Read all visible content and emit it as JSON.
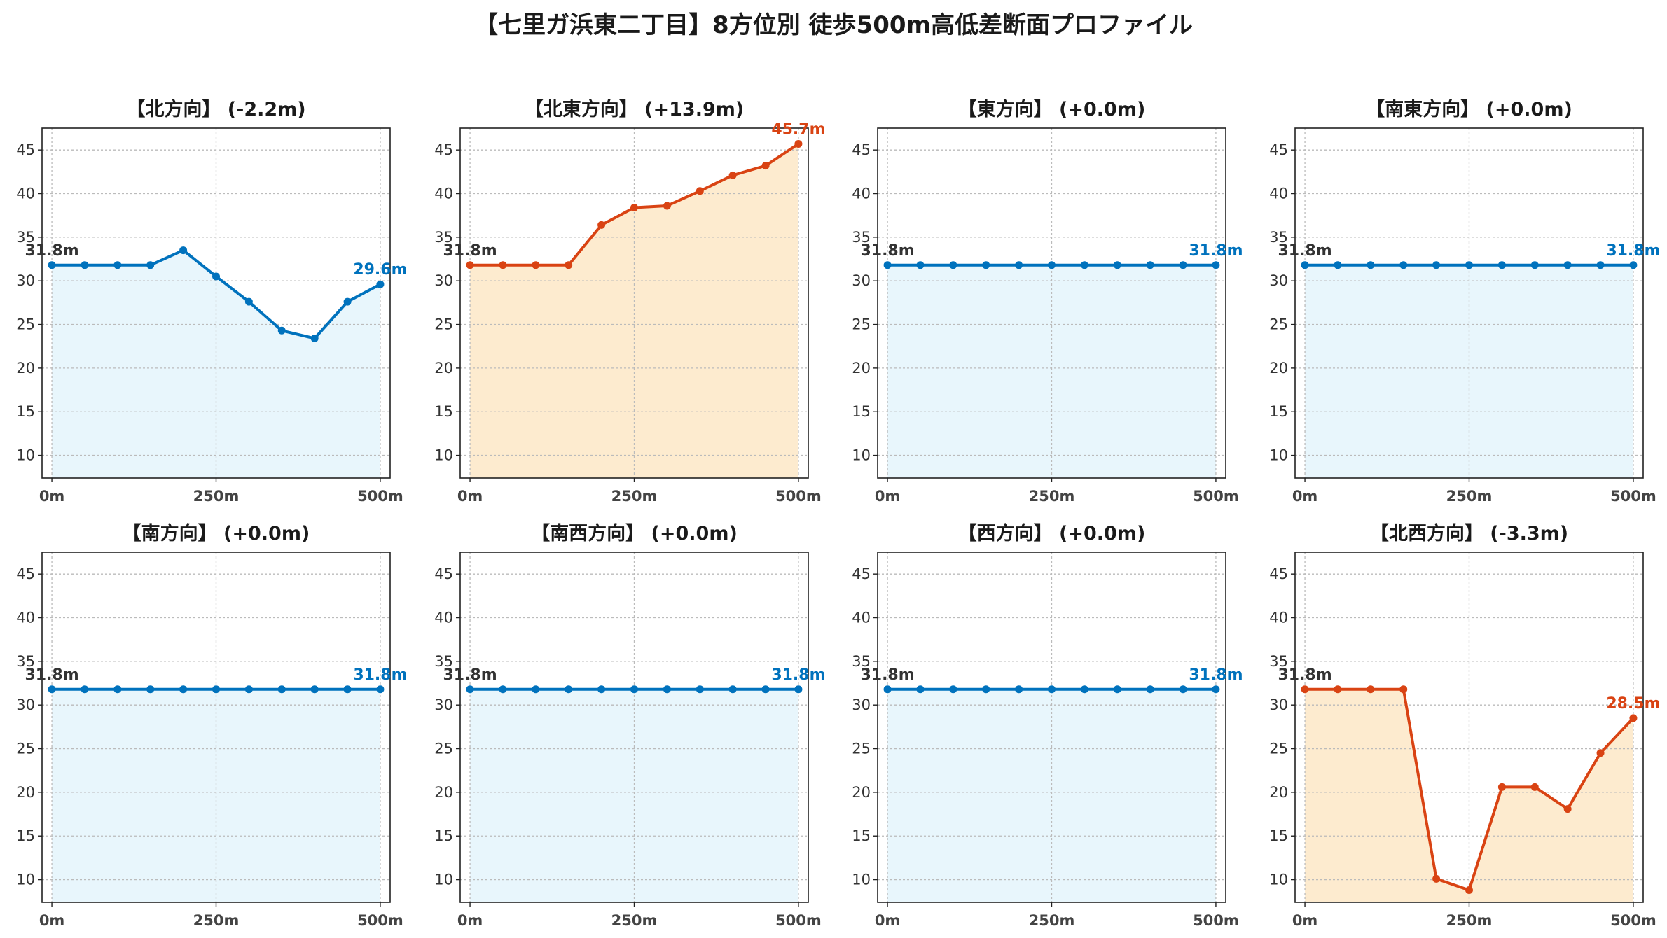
{
  "figure_title": "【七里ガ浜東二丁目】8方位別 徒歩500m高低差断面プロファイル",
  "colors": {
    "flat_line": "#0072BD",
    "flat_fill": "#E8F6FC",
    "change_line": "#D94313",
    "change_fill": "#FDEBCF",
    "start_label": "#333333"
  },
  "chart_data": [
    {
      "type": "area",
      "title": "【北方向】 (-2.2m)",
      "style": "flat",
      "x": [
        0,
        50,
        100,
        150,
        200,
        250,
        300,
        350,
        400,
        450,
        500
      ],
      "values": [
        31.8,
        31.8,
        31.8,
        31.8,
        33.5,
        30.5,
        27.6,
        24.3,
        23.4,
        27.6,
        29.6
      ],
      "start_label": "31.8m",
      "end_label": "29.6m",
      "xticks": [
        "0m",
        "250m",
        "500m"
      ],
      "yticks": [
        10,
        15,
        20,
        25,
        30,
        35,
        40,
        45
      ],
      "xlim": [
        -15,
        515
      ],
      "ylim": [
        7.4,
        47.5
      ],
      "grid": true
    },
    {
      "type": "area",
      "title": "【北東方向】 (+13.9m)",
      "style": "change",
      "x": [
        0,
        50,
        100,
        150,
        200,
        250,
        300,
        350,
        400,
        450,
        500
      ],
      "values": [
        31.8,
        31.8,
        31.8,
        31.8,
        36.4,
        38.4,
        38.6,
        40.3,
        42.1,
        43.2,
        45.7
      ],
      "start_label": "31.8m",
      "end_label": "45.7m",
      "xticks": [
        "0m",
        "250m",
        "500m"
      ],
      "yticks": [
        10,
        15,
        20,
        25,
        30,
        35,
        40,
        45
      ],
      "xlim": [
        -15,
        515
      ],
      "ylim": [
        7.4,
        47.5
      ],
      "grid": true
    },
    {
      "type": "area",
      "title": "【東方向】 (+0.0m)",
      "style": "flat",
      "x": [
        0,
        50,
        100,
        150,
        200,
        250,
        300,
        350,
        400,
        450,
        500
      ],
      "values": [
        31.8,
        31.8,
        31.8,
        31.8,
        31.8,
        31.8,
        31.8,
        31.8,
        31.8,
        31.8,
        31.8
      ],
      "start_label": "31.8m",
      "end_label": "31.8m",
      "xticks": [
        "0m",
        "250m",
        "500m"
      ],
      "yticks": [
        10,
        15,
        20,
        25,
        30,
        35,
        40,
        45
      ],
      "xlim": [
        -15,
        515
      ],
      "ylim": [
        7.4,
        47.5
      ],
      "grid": true
    },
    {
      "type": "area",
      "title": "【南東方向】 (+0.0m)",
      "style": "flat",
      "x": [
        0,
        50,
        100,
        150,
        200,
        250,
        300,
        350,
        400,
        450,
        500
      ],
      "values": [
        31.8,
        31.8,
        31.8,
        31.8,
        31.8,
        31.8,
        31.8,
        31.8,
        31.8,
        31.8,
        31.8
      ],
      "start_label": "31.8m",
      "end_label": "31.8m",
      "xticks": [
        "0m",
        "250m",
        "500m"
      ],
      "yticks": [
        10,
        15,
        20,
        25,
        30,
        35,
        40,
        45
      ],
      "xlim": [
        -15,
        515
      ],
      "ylim": [
        7.4,
        47.5
      ],
      "grid": true
    },
    {
      "type": "area",
      "title": "【南方向】 (+0.0m)",
      "style": "flat",
      "x": [
        0,
        50,
        100,
        150,
        200,
        250,
        300,
        350,
        400,
        450,
        500
      ],
      "values": [
        31.8,
        31.8,
        31.8,
        31.8,
        31.8,
        31.8,
        31.8,
        31.8,
        31.8,
        31.8,
        31.8
      ],
      "start_label": "31.8m",
      "end_label": "31.8m",
      "xticks": [
        "0m",
        "250m",
        "500m"
      ],
      "yticks": [
        10,
        15,
        20,
        25,
        30,
        35,
        40,
        45
      ],
      "xlim": [
        -15,
        515
      ],
      "ylim": [
        7.4,
        47.5
      ],
      "grid": true
    },
    {
      "type": "area",
      "title": "【南西方向】 (+0.0m)",
      "style": "flat",
      "x": [
        0,
        50,
        100,
        150,
        200,
        250,
        300,
        350,
        400,
        450,
        500
      ],
      "values": [
        31.8,
        31.8,
        31.8,
        31.8,
        31.8,
        31.8,
        31.8,
        31.8,
        31.8,
        31.8,
        31.8
      ],
      "start_label": "31.8m",
      "end_label": "31.8m",
      "xticks": [
        "0m",
        "250m",
        "500m"
      ],
      "yticks": [
        10,
        15,
        20,
        25,
        30,
        35,
        40,
        45
      ],
      "xlim": [
        -15,
        515
      ],
      "ylim": [
        7.4,
        47.5
      ],
      "grid": true
    },
    {
      "type": "area",
      "title": "【西方向】 (+0.0m)",
      "style": "flat",
      "x": [
        0,
        50,
        100,
        150,
        200,
        250,
        300,
        350,
        400,
        450,
        500
      ],
      "values": [
        31.8,
        31.8,
        31.8,
        31.8,
        31.8,
        31.8,
        31.8,
        31.8,
        31.8,
        31.8,
        31.8
      ],
      "start_label": "31.8m",
      "end_label": "31.8m",
      "xticks": [
        "0m",
        "250m",
        "500m"
      ],
      "yticks": [
        10,
        15,
        20,
        25,
        30,
        35,
        40,
        45
      ],
      "xlim": [
        -15,
        515
      ],
      "ylim": [
        7.4,
        47.5
      ],
      "grid": true
    },
    {
      "type": "area",
      "title": "【北西方向】 (-3.3m)",
      "style": "change",
      "x": [
        0,
        50,
        100,
        150,
        200,
        250,
        300,
        350,
        400,
        450,
        500
      ],
      "values": [
        31.8,
        31.8,
        31.8,
        31.8,
        10.1,
        8.8,
        20.6,
        20.6,
        18.1,
        24.5,
        28.5
      ],
      "start_label": "31.8m",
      "end_label": "28.5m",
      "xticks": [
        "0m",
        "250m",
        "500m"
      ],
      "yticks": [
        10,
        15,
        20,
        25,
        30,
        35,
        40,
        45
      ],
      "xlim": [
        -15,
        515
      ],
      "ylim": [
        7.4,
        47.5
      ],
      "grid": true
    }
  ]
}
